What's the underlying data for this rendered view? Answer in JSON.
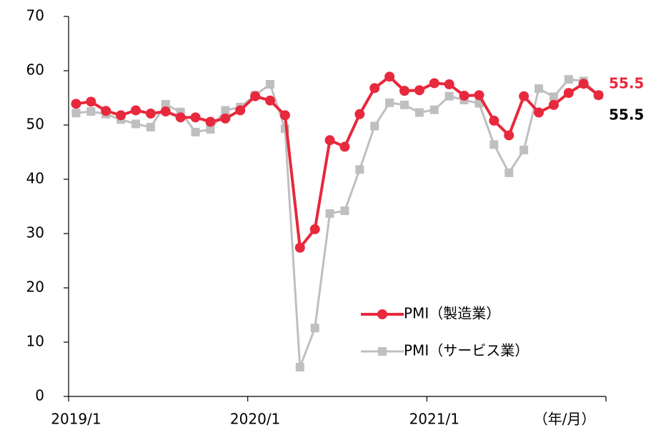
{
  "chart_data": {
    "type": "line",
    "categories": [
      "2019/1",
      null,
      null,
      null,
      null,
      null,
      null,
      null,
      null,
      null,
      null,
      null,
      "2020/1",
      null,
      null,
      null,
      null,
      null,
      null,
      null,
      null,
      null,
      null,
      null,
      "2021/1",
      null,
      null,
      null,
      null,
      null,
      null,
      null,
      null,
      null,
      null,
      null
    ],
    "x_label": "（年/月）",
    "series": [
      {
        "name": "PMI（製造業）",
        "color": "#e8283c",
        "label_color": "#e8283c",
        "marker": "circle",
        "values": [
          53.9,
          54.3,
          52.6,
          51.8,
          52.7,
          52.1,
          52.5,
          51.4,
          51.4,
          50.6,
          51.2,
          52.7,
          55.3,
          54.5,
          51.8,
          27.4,
          30.8,
          47.2,
          46.0,
          52.0,
          56.8,
          58.9,
          56.3,
          56.4,
          57.7,
          57.5,
          55.4,
          55.5,
          50.8,
          48.1,
          55.3,
          52.3,
          53.7,
          55.9,
          57.6,
          55.5
        ]
      },
      {
        "name": "PMI（サービス業）",
        "color": "#bfbfbf",
        "label_color": "#000000",
        "marker": "square",
        "values": [
          52.2,
          52.5,
          52.0,
          51.0,
          50.2,
          49.6,
          53.8,
          52.4,
          48.7,
          49.2,
          52.7,
          53.3,
          55.5,
          57.5,
          49.3,
          5.4,
          12.6,
          33.7,
          34.2,
          41.8,
          49.8,
          54.1,
          53.7,
          52.3,
          52.8,
          55.3,
          54.6,
          54.0,
          46.4,
          41.2,
          45.4,
          56.7,
          55.2,
          58.4,
          58.1,
          55.5
        ]
      }
    ],
    "ylim": [
      0,
      70
    ],
    "yticks": [
      0,
      10,
      20,
      30,
      40,
      50,
      60,
      70
    ],
    "grid": false,
    "legend": "lower right"
  }
}
